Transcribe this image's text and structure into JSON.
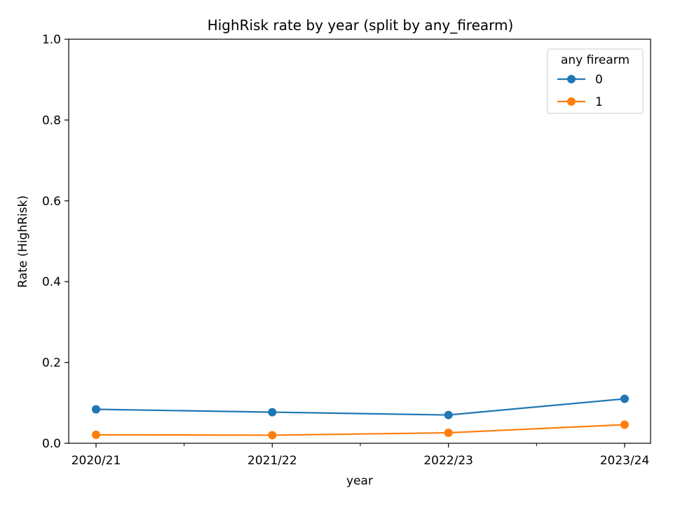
{
  "chart_data": {
    "type": "line",
    "title": "HighRisk rate by year (split by any_firearm)",
    "xlabel": "year",
    "ylabel": "Rate (HighRisk)",
    "categories": [
      "2020/21",
      "2021/22",
      "2022/23",
      "2023/24"
    ],
    "ylim": [
      0,
      1
    ],
    "yticks": [
      "0.0",
      "0.2",
      "0.4",
      "0.6",
      "0.8",
      "1.0"
    ],
    "grid": false,
    "legend": {
      "title": "any firearm",
      "placement": "top-right"
    },
    "series": [
      {
        "name": "0",
        "color": "#1f77b4",
        "values": [
          0.084,
          0.077,
          0.07,
          0.11
        ]
      },
      {
        "name": "1",
        "color": "#ff7f0e",
        "values": [
          0.021,
          0.02,
          0.026,
          0.046
        ]
      }
    ]
  }
}
